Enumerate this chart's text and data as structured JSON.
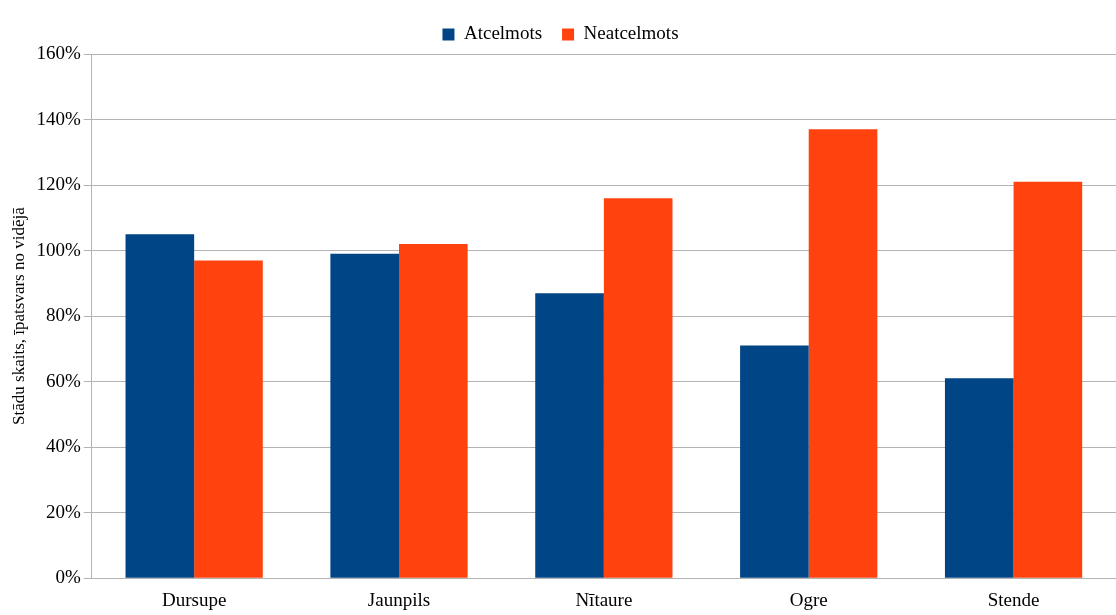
{
  "chart_data": {
    "type": "bar",
    "ylabel": "Stādu skaits, īpatsvars no vidējā",
    "categories": [
      "Dursupe",
      "Jaunpils",
      "Nītaure",
      "Ogre",
      "Stende"
    ],
    "series": [
      {
        "name": "Atcelmots",
        "color": "#004586",
        "values": [
          105,
          99,
          87,
          71,
          61
        ]
      },
      {
        "name": "Neatcelmots",
        "color": "#ff420e",
        "values": [
          97,
          102,
          116,
          137,
          121
        ]
      }
    ],
    "ylim": [
      0,
      160
    ],
    "yticks": [
      {
        "value": 0,
        "label": "0%"
      },
      {
        "value": 20,
        "label": "20%"
      },
      {
        "value": 40,
        "label": "40%"
      },
      {
        "value": 60,
        "label": "60%"
      },
      {
        "value": 80,
        "label": "80%"
      },
      {
        "value": 100,
        "label": "100%"
      },
      {
        "value": 120,
        "label": "120%"
      },
      {
        "value": 140,
        "label": "140%"
      },
      {
        "value": 160,
        "label": "160%"
      }
    ],
    "grid": "y",
    "legend": "top"
  }
}
